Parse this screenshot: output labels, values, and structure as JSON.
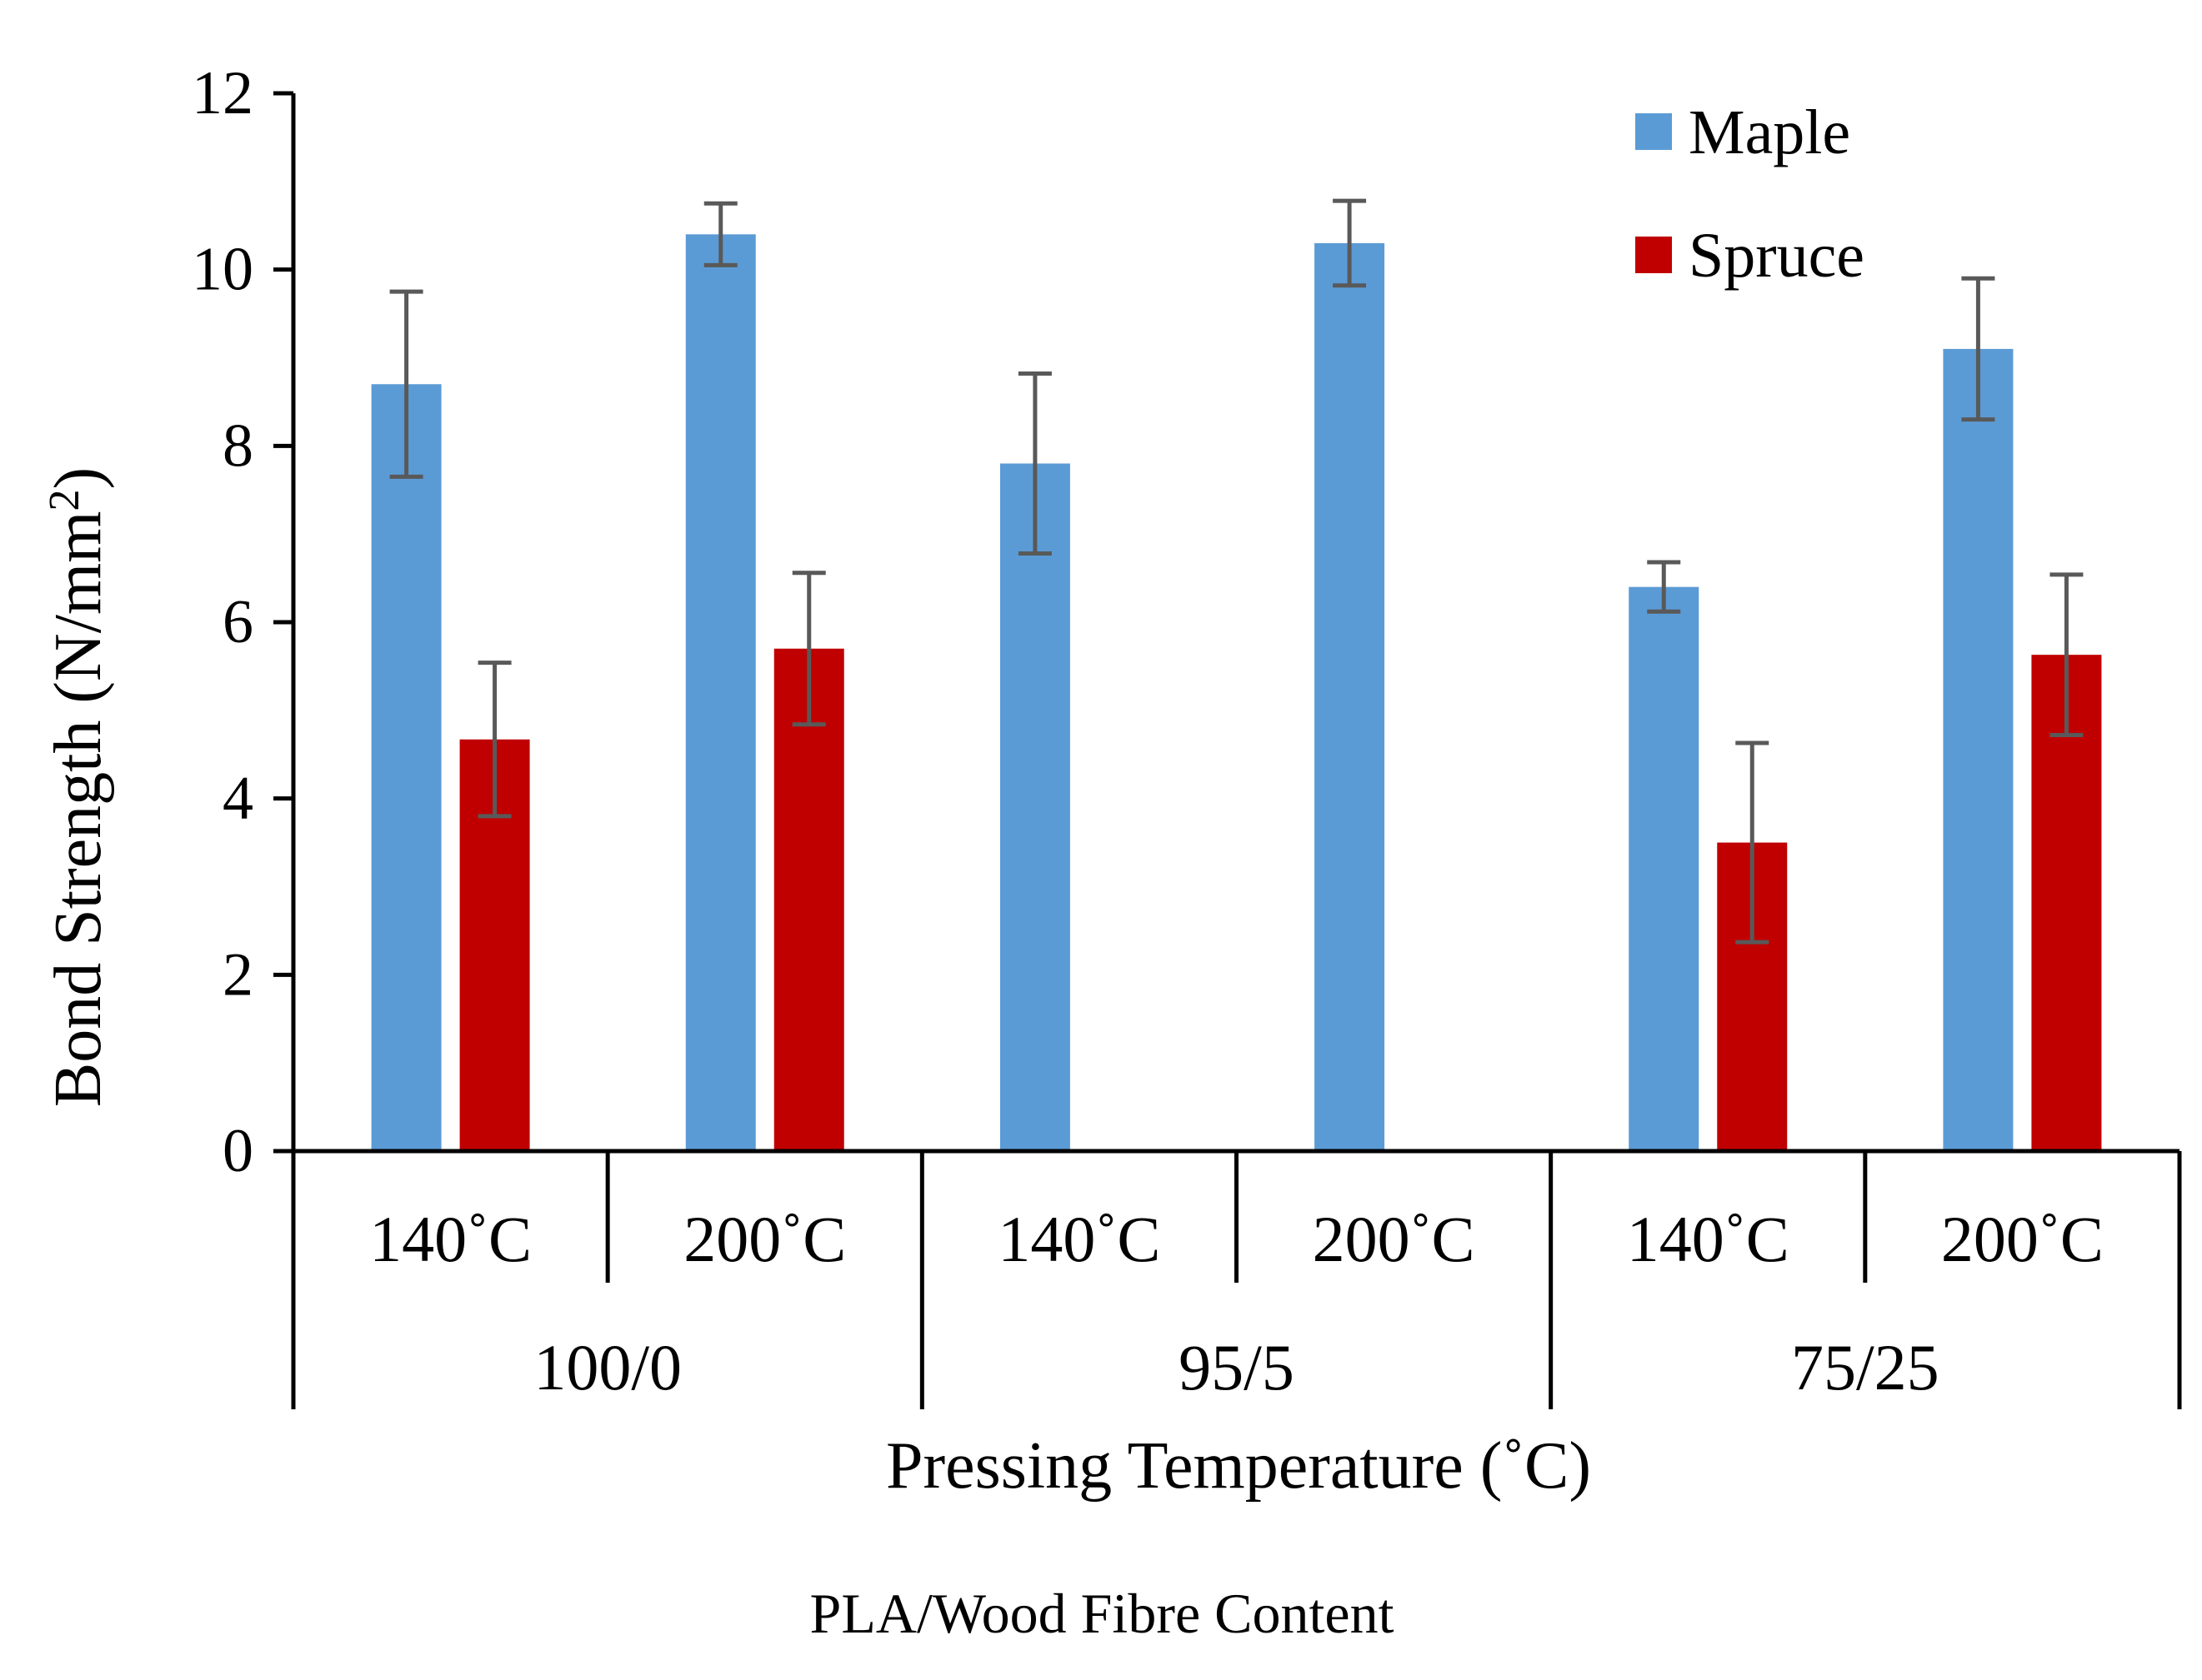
{
  "chart_data": {
    "type": "bar",
    "title": "",
    "xlabel": "Pressing Temperature (˚C)",
    "ylabel": "Bond Strength (N/mm²)",
    "ylabel_main": "Bond Strength (N/mm",
    "ylabel_sup": "2",
    "ylabel_end": ")",
    "footnote": "PLA/Wood Fibre Content",
    "ylim": [
      0,
      12
    ],
    "yticks": [
      "0",
      "2",
      "4",
      "6",
      "8",
      "10",
      "12"
    ],
    "groups": [
      {
        "label": "100/0",
        "subcategories": [
          "140˚C",
          "200˚C"
        ]
      },
      {
        "label": "95/5",
        "subcategories": [
          "140˚C",
          "200˚C"
        ]
      },
      {
        "label": "75/25",
        "subcategories": [
          "140˚C",
          "200˚C"
        ]
      }
    ],
    "series": [
      {
        "name": "Maple",
        "color": "#5B9BD5",
        "values": [
          8.7,
          10.4,
          7.8,
          10.3,
          6.4,
          9.1
        ],
        "errors": [
          1.05,
          0.35,
          1.02,
          0.48,
          0.28,
          0.8
        ]
      },
      {
        "name": "Spruce",
        "color": "#C00000",
        "values": [
          4.67,
          5.7,
          null,
          null,
          3.5,
          5.63
        ],
        "errors": [
          0.87,
          0.86,
          null,
          null,
          1.13,
          0.91
        ]
      }
    ],
    "error_bar_color": "#595959",
    "legend_position": "top-right"
  }
}
